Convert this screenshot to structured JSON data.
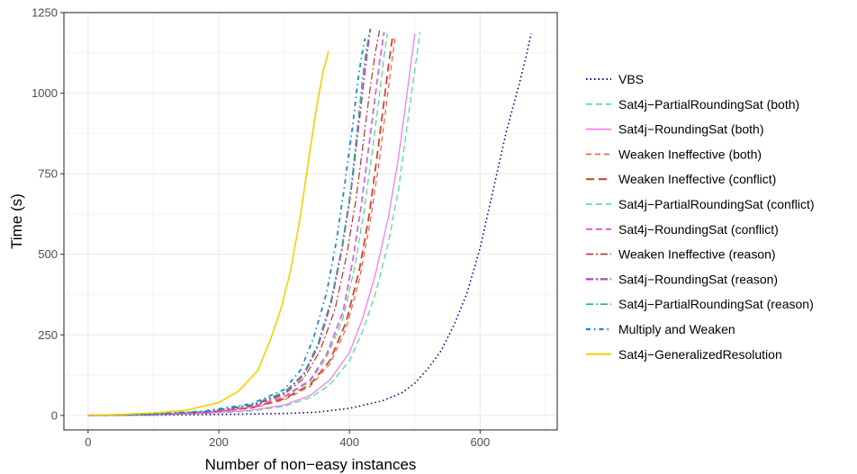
{
  "chart_data": {
    "type": "line",
    "title": "",
    "xlabel": "Number of non−easy instances",
    "ylabel": "Time (s)",
    "xlim": [
      -37,
      718
    ],
    "ylim": [
      -45,
      1250
    ],
    "xticks": [
      0,
      200,
      400,
      600
    ],
    "xtick_labels": [
      "0",
      "200",
      "400",
      "600"
    ],
    "yticks": [
      0,
      250,
      500,
      750,
      1000,
      1250
    ],
    "ytick_labels": [
      "0",
      "250",
      "500",
      "750",
      "1000",
      "1250"
    ],
    "grid": true,
    "legend_position": "right",
    "series": [
      {
        "name": "VBS",
        "color": "#00008b",
        "dash": "1.5,3",
        "width": 1.6,
        "x": [
          0,
          100,
          200,
          300,
          350,
          400,
          450,
          480,
          500,
          520,
          540,
          560,
          580,
          600,
          620,
          640,
          660,
          670,
          678
        ],
        "y": [
          0,
          1,
          3,
          6,
          10,
          22,
          45,
          70,
          100,
          145,
          200,
          280,
          380,
          520,
          700,
          880,
          1030,
          1110,
          1185
        ]
      },
      {
        "name": "Sat4j−PartialRoundingSat (both)",
        "color": "#52e08a",
        "dash": "7,4",
        "width": 1.3,
        "x": [
          0,
          100,
          180,
          250,
          300,
          340,
          370,
          400,
          420,
          440,
          460,
          475,
          485,
          495,
          502,
          508
        ],
        "y": [
          0,
          2,
          6,
          14,
          28,
          55,
          95,
          170,
          260,
          380,
          540,
          700,
          850,
          1000,
          1100,
          1190
        ]
      },
      {
        "name": "Sat4j−RoundingSat (both)",
        "color": "#f77cef",
        "dash": "",
        "width": 1.3,
        "x": [
          0,
          100,
          180,
          250,
          300,
          340,
          370,
          400,
          420,
          440,
          460,
          475,
          485,
          492,
          500
        ],
        "y": [
          0,
          2,
          7,
          16,
          32,
          62,
          110,
          195,
          300,
          440,
          620,
          800,
          950,
          1060,
          1185
        ]
      },
      {
        "name": "Weaken Ineffective (both)",
        "color": "#e8623e",
        "dash": "6,4",
        "width": 1.2,
        "x": [
          0,
          100,
          180,
          250,
          300,
          340,
          370,
          395,
          415,
          430,
          445,
          455,
          463,
          470
        ],
        "y": [
          0,
          3,
          9,
          22,
          48,
          90,
          160,
          270,
          420,
          580,
          780,
          940,
          1070,
          1175
        ]
      },
      {
        "name": "Weaken Ineffective (conflict)",
        "color": "#d94030",
        "dash": "9,5",
        "width": 1.8,
        "x": [
          0,
          100,
          180,
          250,
          300,
          340,
          370,
          395,
          415,
          430,
          442,
          452,
          460,
          466
        ],
        "y": [
          0,
          3,
          9,
          24,
          52,
          96,
          170,
          290,
          450,
          620,
          800,
          960,
          1090,
          1175
        ]
      },
      {
        "name": "Sat4j−PartialRoundingSat (conflict)",
        "color": "#3ee07a",
        "dash": "7,4",
        "width": 1.2,
        "x": [
          0,
          100,
          180,
          250,
          300,
          340,
          365,
          390,
          408,
          422,
          435,
          445,
          452,
          458
        ],
        "y": [
          0,
          3,
          10,
          26,
          56,
          105,
          180,
          300,
          460,
          630,
          820,
          980,
          1100,
          1185
        ]
      },
      {
        "name": "Sat4j−RoundingSat (conflict)",
        "color": "#e062e0",
        "dash": "7,4",
        "width": 1.8,
        "x": [
          0,
          100,
          180,
          250,
          300,
          340,
          365,
          390,
          405,
          418,
          430,
          440,
          447,
          453
        ],
        "y": [
          0,
          3,
          10,
          27,
          58,
          110,
          190,
          320,
          480,
          650,
          840,
          1000,
          1110,
          1190
        ]
      },
      {
        "name": "Weaken Ineffective (reason)",
        "color": "#a83a2a",
        "dash": "8,3,2,3",
        "width": 1.2,
        "x": [
          0,
          100,
          180,
          250,
          300,
          330,
          355,
          378,
          395,
          410,
          422,
          432,
          440,
          446
        ],
        "y": [
          0,
          3,
          11,
          30,
          65,
          115,
          200,
          330,
          490,
          670,
          860,
          1020,
          1130,
          1195
        ]
      },
      {
        "name": "Sat4j−RoundingSat (reason)",
        "color": "#b040c8",
        "dash": "8,3,2,3",
        "width": 1.8,
        "x": [
          0,
          100,
          180,
          250,
          300,
          330,
          352,
          372,
          388,
          402,
          413,
          422,
          428,
          432
        ],
        "y": [
          0,
          3,
          12,
          32,
          70,
          125,
          215,
          350,
          510,
          690,
          880,
          1040,
          1140,
          1200
        ]
      },
      {
        "name": "Sat4j−PartialRoundingSat (reason)",
        "color": "#22b86a",
        "dash": "8,3,2,3",
        "width": 1.2,
        "x": [
          0,
          100,
          180,
          250,
          300,
          330,
          352,
          372,
          388,
          402,
          412,
          420,
          426,
          431
        ],
        "y": [
          0,
          3,
          12,
          33,
          72,
          130,
          225,
          360,
          520,
          700,
          890,
          1050,
          1140,
          1190
        ]
      },
      {
        "name": "Multiply and Weaken",
        "color": "#1c86d6",
        "dash": "5,4,1.5,4",
        "width": 1.8,
        "x": [
          0,
          100,
          180,
          250,
          300,
          325,
          345,
          365,
          380,
          393,
          405,
          413,
          419,
          424
        ],
        "y": [
          0,
          4,
          14,
          36,
          80,
          140,
          240,
          380,
          540,
          720,
          900,
          1040,
          1120,
          1170
        ]
      },
      {
        "name": "Sat4j−GeneralizedResolution",
        "color": "#f5d000",
        "dash": "",
        "width": 1.6,
        "x": [
          0,
          50,
          100,
          150,
          200,
          230,
          260,
          280,
          295,
          310,
          325,
          338,
          350,
          360,
          368
        ],
        "y": [
          0,
          3,
          8,
          16,
          40,
          75,
          140,
          240,
          330,
          450,
          620,
          800,
          960,
          1070,
          1130
        ]
      }
    ]
  }
}
